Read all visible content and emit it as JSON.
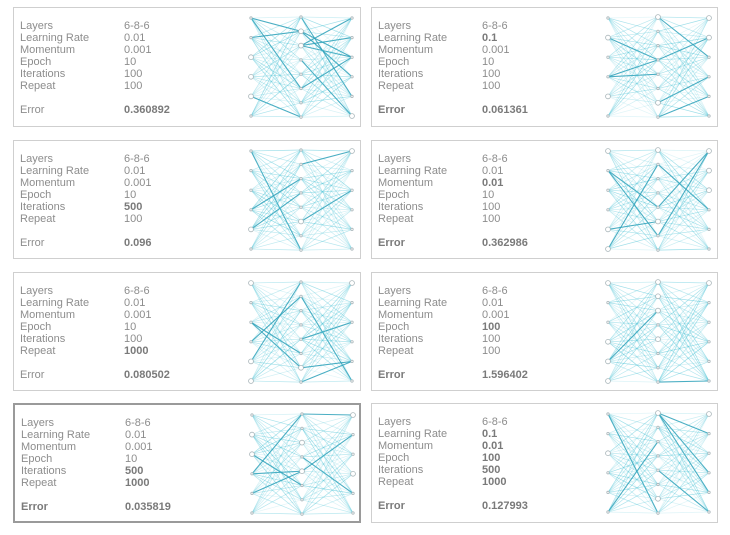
{
  "labels": {
    "layers": "Layers",
    "learning_rate": "Learning Rate",
    "momentum": "Momentum",
    "epoch": "Epoch",
    "iterations": "Iterations",
    "repeat": "Repeat",
    "error": "Error"
  },
  "colors": {
    "edge": "#4dc3d6",
    "edge_strong": "#2aa0b8",
    "node": "#a8b4b8",
    "text": "#8d8d8d",
    "border": "#cfcfcf"
  },
  "panels": [
    {
      "layers": "6-8-6",
      "learning_rate": "0.01",
      "momentum": "0.001",
      "epoch": "10",
      "iterations": "100",
      "repeat": "100",
      "error": "0.360892",
      "bold": [
        "error_value"
      ],
      "selected": false
    },
    {
      "layers": "6-8-6",
      "learning_rate": "0.1",
      "momentum": "0.001",
      "epoch": "10",
      "iterations": "100",
      "repeat": "100",
      "error": "0.061361",
      "bold": [
        "learning_rate",
        "error_label",
        "error_value"
      ],
      "selected": false
    },
    {
      "layers": "6-8-6",
      "learning_rate": "0.01",
      "momentum": "0.001",
      "epoch": "10",
      "iterations": "500",
      "repeat": "100",
      "error": "0.096",
      "bold": [
        "iterations",
        "error_value"
      ],
      "selected": false
    },
    {
      "layers": "6-8-6",
      "learning_rate": "0.01",
      "momentum": "0.01",
      "epoch": "10",
      "iterations": "100",
      "repeat": "100",
      "error": "0.362986",
      "bold": [
        "momentum",
        "error_label",
        "error_value"
      ],
      "selected": false
    },
    {
      "layers": "6-8-6",
      "learning_rate": "0.01",
      "momentum": "0.001",
      "epoch": "10",
      "iterations": "100",
      "repeat": "1000",
      "error": "0.080502",
      "bold": [
        "repeat",
        "error_value"
      ],
      "selected": false
    },
    {
      "layers": "6-8-6",
      "learning_rate": "0.01",
      "momentum": "0.001",
      "epoch": "100",
      "iterations": "100",
      "repeat": "100",
      "error": "1.596402",
      "bold": [
        "epoch",
        "error_label",
        "error_value"
      ],
      "selected": false
    },
    {
      "layers": "6-8-6",
      "learning_rate": "0.01",
      "momentum": "0.001",
      "epoch": "10",
      "iterations": "500",
      "repeat": "1000",
      "error": "0.035819",
      "bold": [
        "iterations",
        "repeat",
        "error_label",
        "error_value"
      ],
      "selected": true
    },
    {
      "layers": "6-8-6",
      "learning_rate": "0.1",
      "momentum": "0.01",
      "epoch": "100",
      "iterations": "500",
      "repeat": "1000",
      "error": "0.127993",
      "bold": [
        "learning_rate",
        "momentum",
        "epoch",
        "iterations",
        "repeat",
        "error_label",
        "error_value"
      ],
      "selected": false
    }
  ]
}
